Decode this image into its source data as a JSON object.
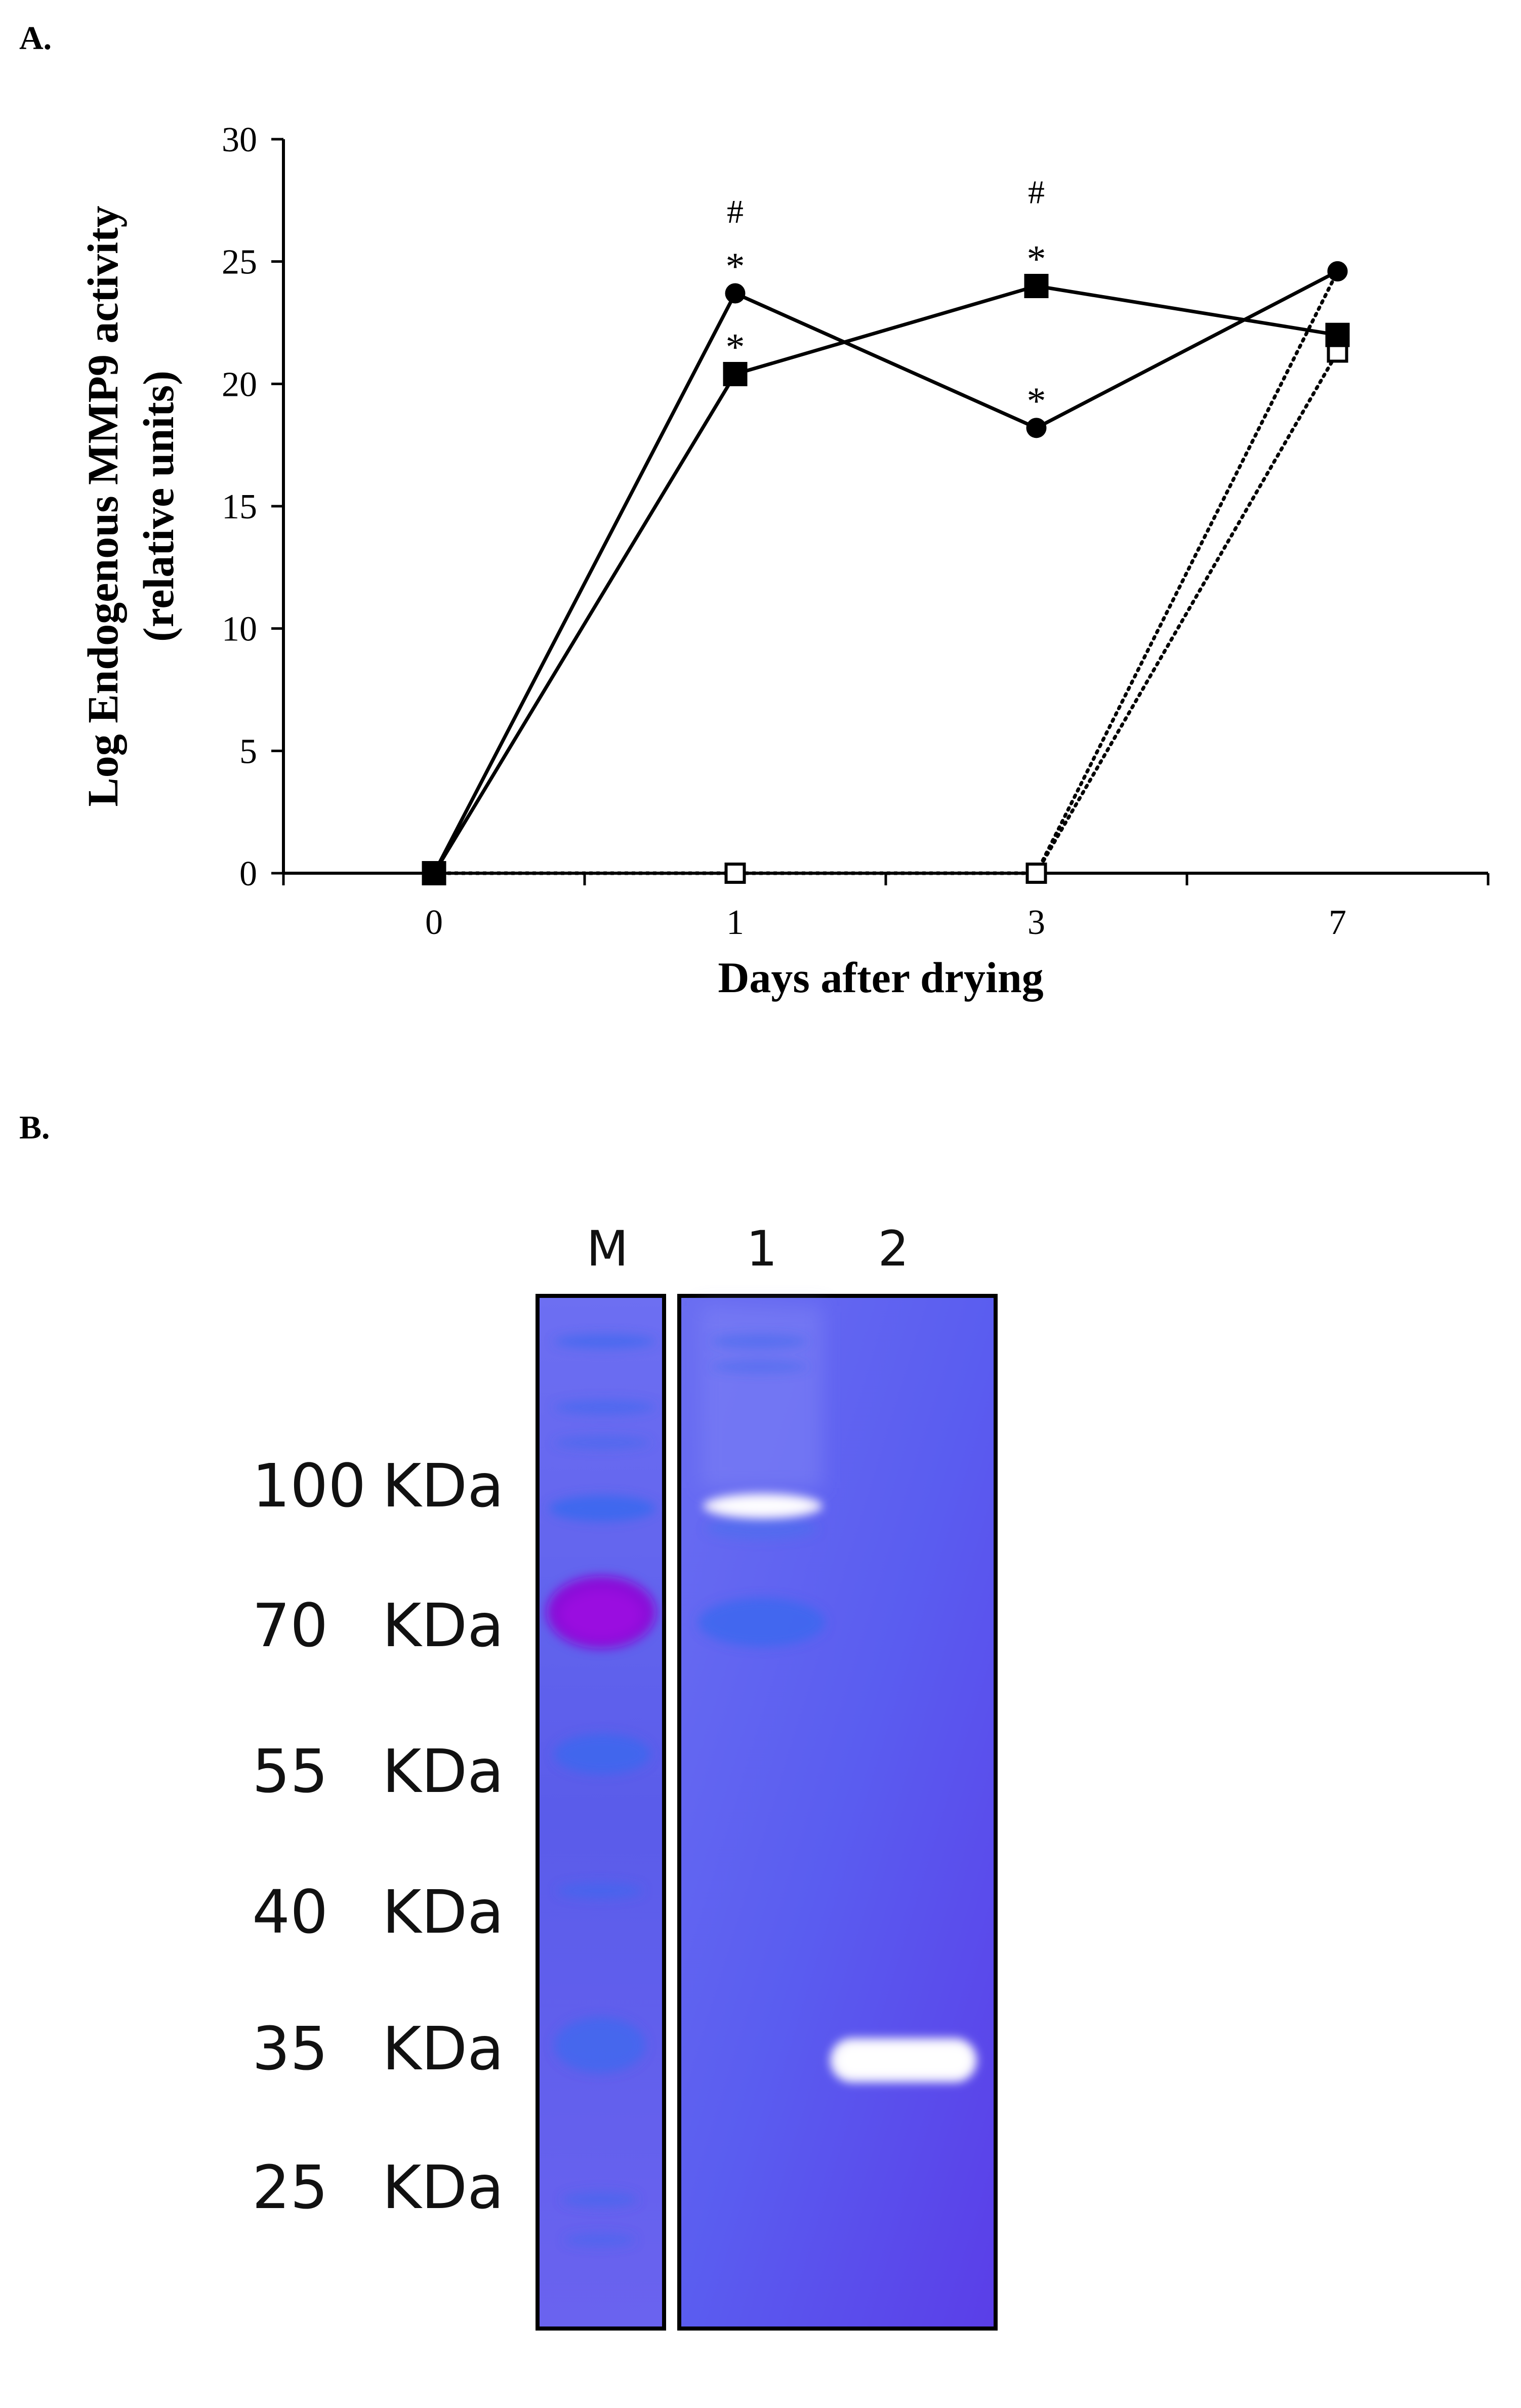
{
  "panel_a_label": "A.",
  "panel_b_label": "B.",
  "chart_data": [
    {
      "type": "line",
      "title": "",
      "xlabel": "Days after drying",
      "ylabel_line1": "Log Endogenous MMP9 activity",
      "ylabel_line2": "(relative units)",
      "categories": [
        "0",
        "1",
        "3",
        "7"
      ],
      "ylim": [
        0,
        30
      ],
      "yticks": [
        0,
        5,
        10,
        15,
        20,
        25,
        30
      ],
      "series": [
        {
          "name": "filled circle",
          "marker": "circle-filled",
          "line": "solid",
          "values": [
            0,
            23.7,
            18.2,
            24.6
          ]
        },
        {
          "name": "filled square",
          "marker": "square-filled",
          "line": "solid",
          "values": [
            0,
            20.4,
            24.0,
            22.0
          ]
        },
        {
          "name": "open circle",
          "marker": "circle-open",
          "line": "dotted",
          "values": [
            0,
            0,
            0,
            24.6
          ]
        },
        {
          "name": "open square",
          "marker": "square-open",
          "line": "dotted",
          "values": [
            0,
            0,
            0,
            21.3
          ]
        }
      ],
      "annotations": [
        {
          "text": "#",
          "category": "1",
          "y": 27.0
        },
        {
          "text": "*",
          "category": "1",
          "y": 24.9
        },
        {
          "text": "*",
          "category": "1",
          "y": 21.6
        },
        {
          "text": "#",
          "category": "3",
          "y": 27.8
        },
        {
          "text": "*",
          "category": "3",
          "y": 25.2
        },
        {
          "text": "*",
          "category": "3",
          "y": 19.4
        }
      ]
    },
    {
      "type": "gel",
      "lane_labels": [
        "M",
        "1",
        "2"
      ],
      "marker_labels": [
        {
          "value": "100",
          "unit": "KDa"
        },
        {
          "value": "70",
          "unit": "KDa"
        },
        {
          "value": "55",
          "unit": "KDa"
        },
        {
          "value": "40",
          "unit": "KDa"
        },
        {
          "value": "35",
          "unit": "KDa"
        },
        {
          "value": "25",
          "unit": "KDa"
        }
      ]
    }
  ],
  "colors": {
    "axis": "#000000",
    "gel_background": "#5b5ee8",
    "marker_band": "#3f6cf0",
    "marker_70_band": "#8a10d8",
    "clear_band": "#ffffff"
  }
}
